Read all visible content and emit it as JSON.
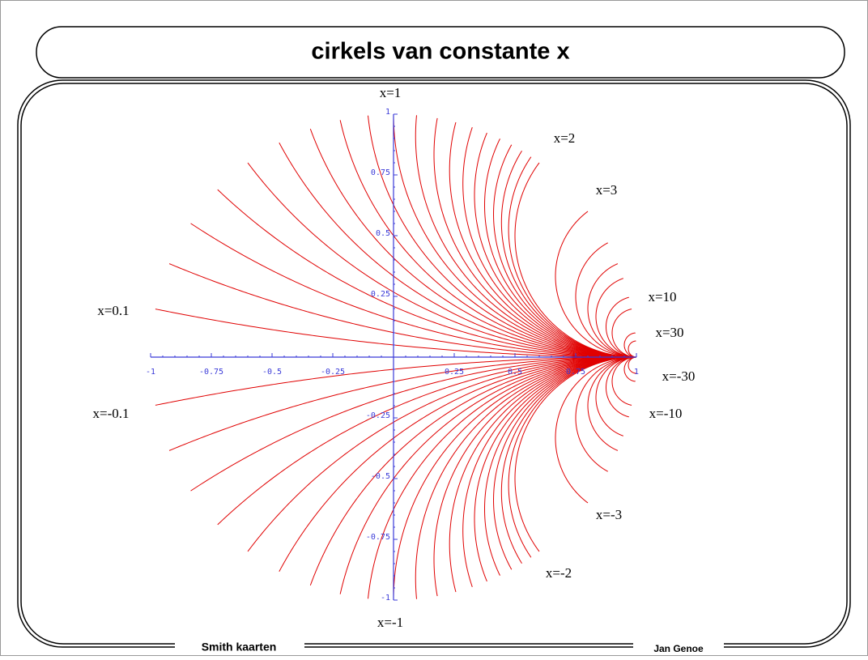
{
  "title": "cirkels van constante x",
  "footer": {
    "left": "Smith kaarten",
    "right": "Jan Genoe"
  },
  "chart_data": {
    "type": "smith-x",
    "color": "#e00000",
    "axis_color": "#3b3bd8",
    "xlim": [
      -1,
      1
    ],
    "ylim": [
      -1,
      1
    ],
    "xticks": [
      -1,
      -0.75,
      -0.5,
      -0.25,
      0.25,
      0.5,
      0.75,
      1
    ],
    "yticks": [
      -1,
      -0.75,
      -0.5,
      -0.25,
      0.25,
      0.5,
      0.75,
      1
    ],
    "x_values": [
      0.1,
      0.2,
      0.3,
      0.4,
      0.5,
      0.6,
      0.7,
      0.8,
      0.9,
      1,
      1.1,
      1.2,
      1.3,
      1.4,
      1.5,
      1.6,
      1.7,
      1.8,
      1.9,
      2,
      3,
      4,
      5,
      6,
      8,
      10,
      20,
      30,
      -0.1,
      -0.2,
      -0.3,
      -0.4,
      -0.5,
      -0.6,
      -0.7,
      -0.8,
      -0.9,
      -1,
      -1.1,
      -1.2,
      -1.3,
      -1.4,
      -1.5,
      -1.6,
      -1.7,
      -1.8,
      -1.9,
      -2,
      -3,
      -4,
      -5,
      -6,
      -8,
      -10,
      -20,
      -30
    ],
    "annotations": [
      "x=1",
      "x=2",
      "x=3",
      "x=10",
      "x=30",
      "x=-30",
      "x=-10",
      "x=-3",
      "x=-2",
      "x=-1",
      "x=0.1",
      "x=-0.1"
    ]
  }
}
